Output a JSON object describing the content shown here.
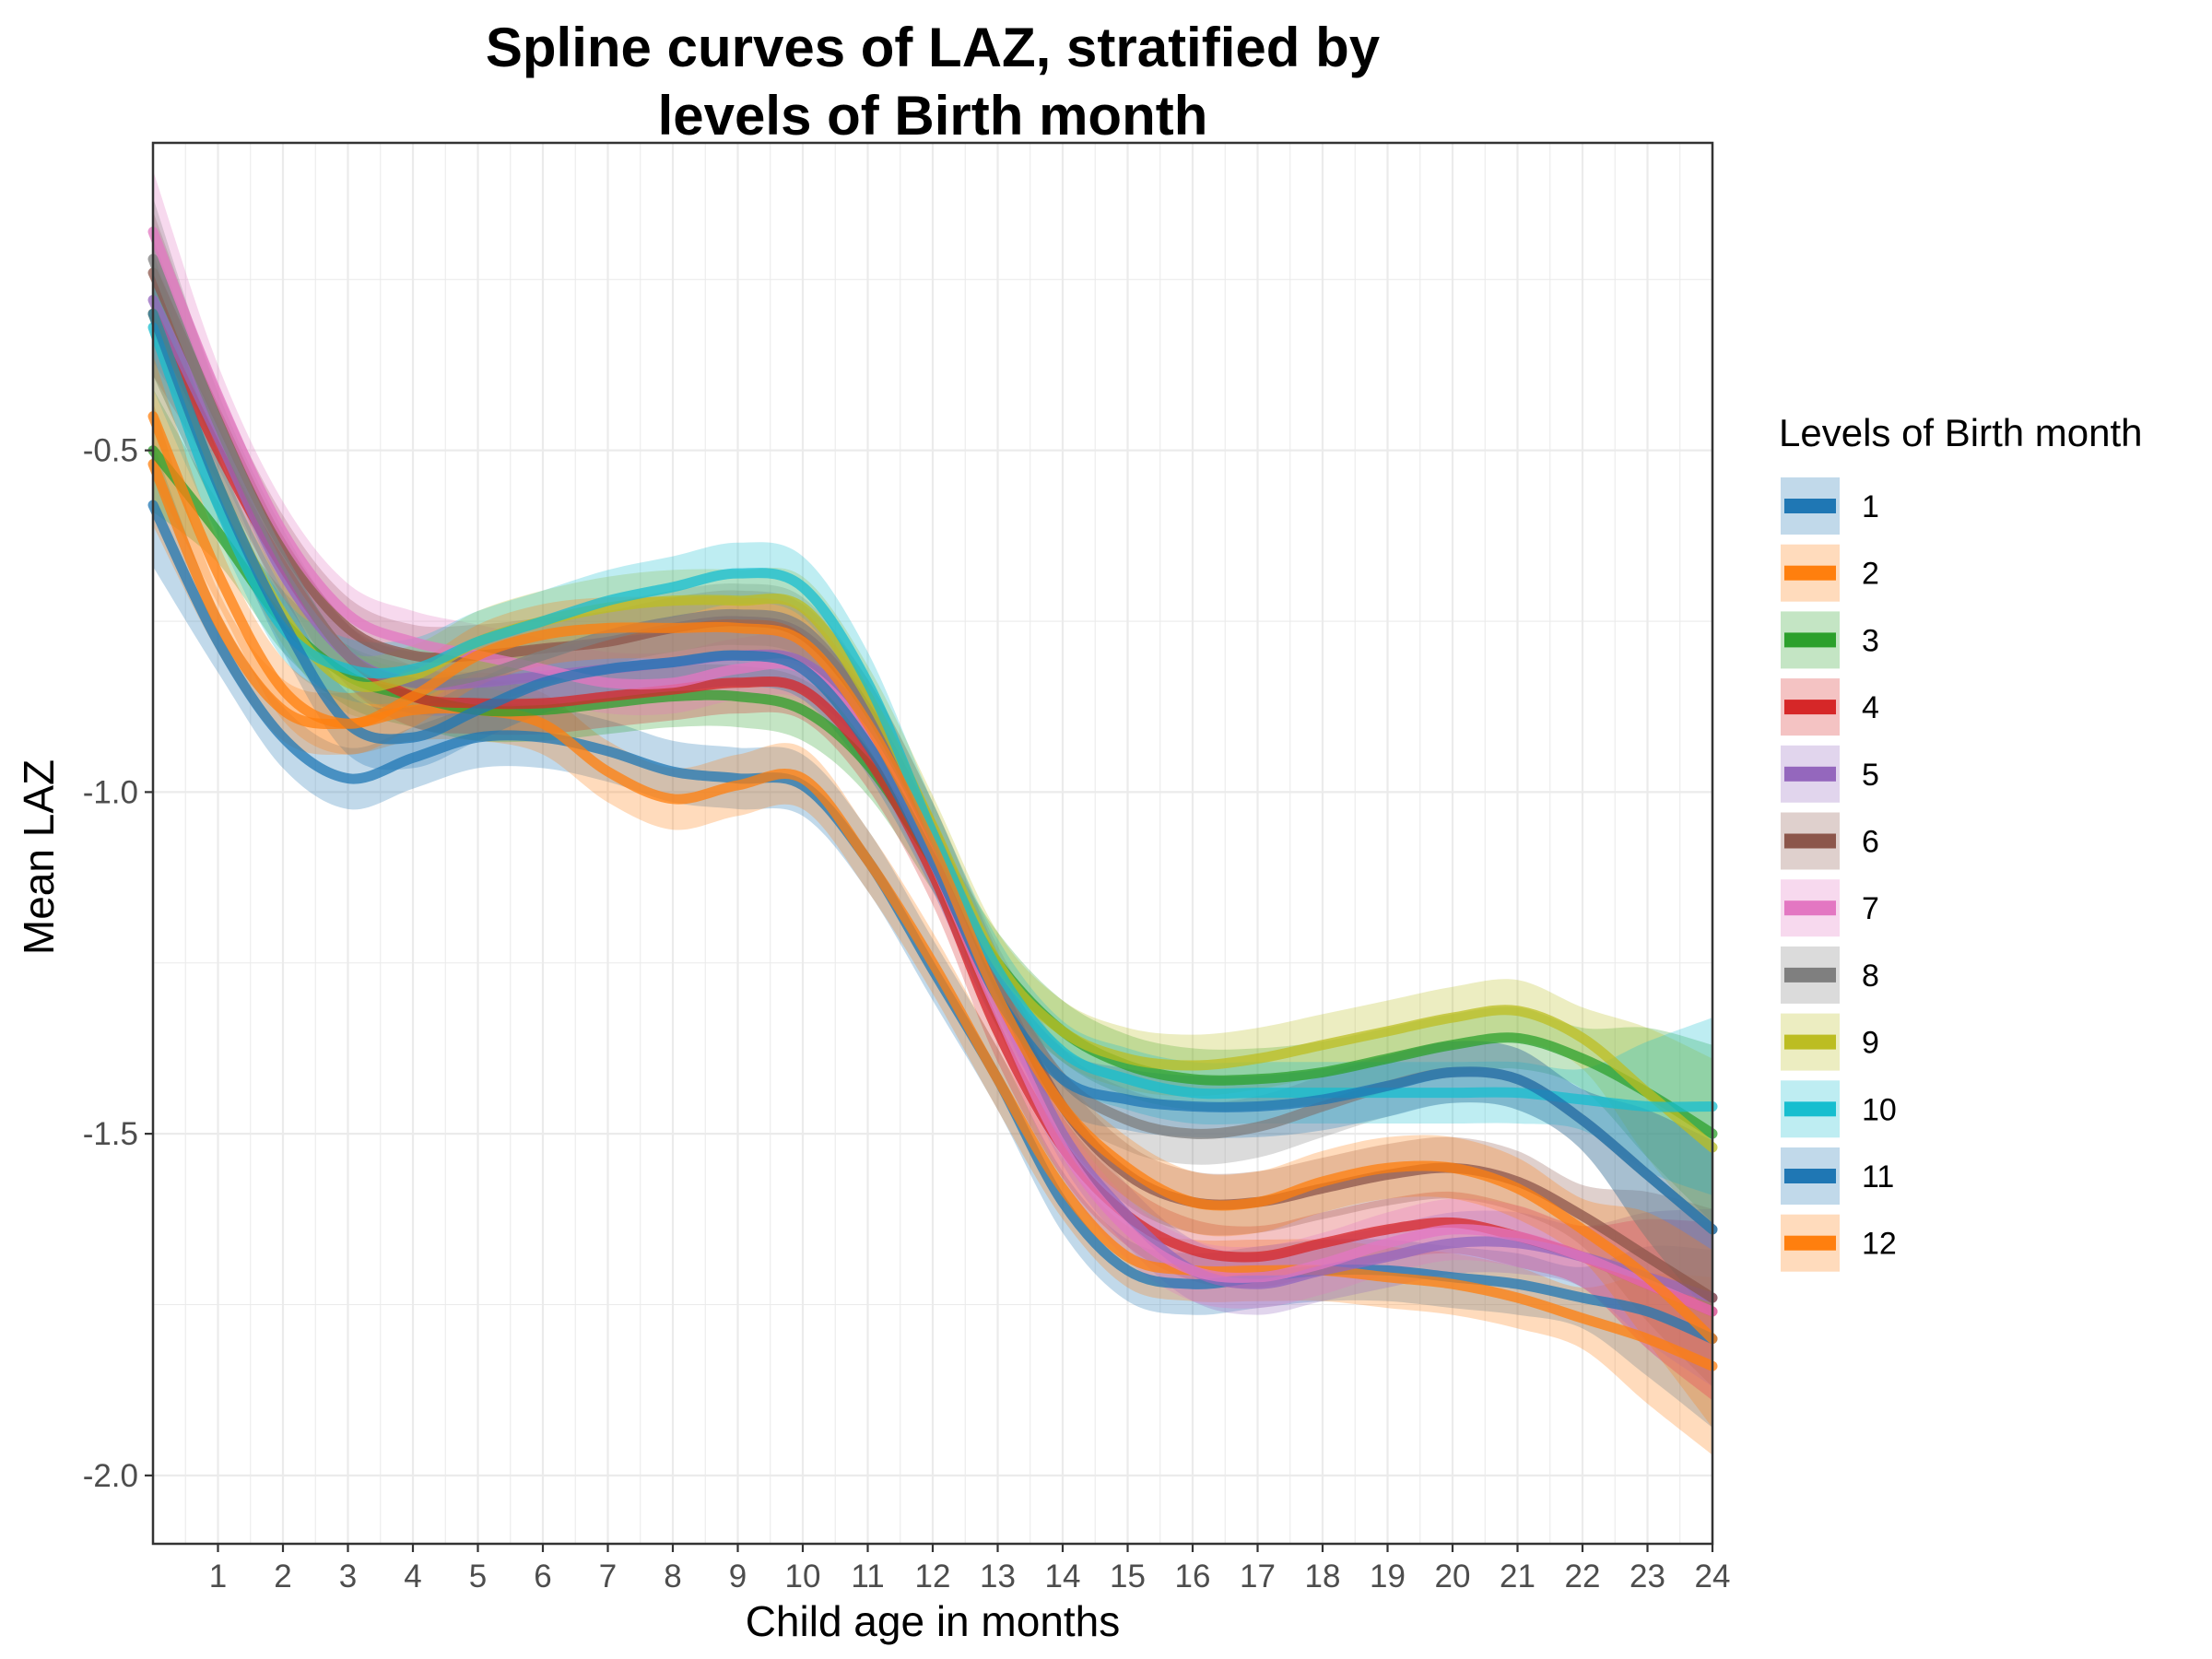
{
  "chart_data": {
    "type": "line",
    "title_lines": [
      "Spline curves of LAZ, stratified by",
      "levels of Birth month"
    ],
    "xlabel": "Child age in months",
    "ylabel": "Mean LAZ",
    "xlim": [
      0,
      24
    ],
    "ylim": [
      -2.1,
      -0.05
    ],
    "x_ticks": [
      1,
      2,
      3,
      4,
      5,
      6,
      7,
      8,
      9,
      10,
      11,
      12,
      13,
      14,
      15,
      16,
      17,
      18,
      19,
      20,
      21,
      22,
      23,
      24
    ],
    "x_tick_labels": [
      "1",
      "2",
      "3",
      "4",
      "5",
      "6",
      "7",
      "8",
      "9",
      "10",
      "11",
      "12",
      "13",
      "14",
      "15",
      "16",
      "17",
      "18",
      "19",
      "20",
      "21",
      "22",
      "23",
      "24"
    ],
    "y_ticks": [
      -0.5,
      -1.0,
      -1.5,
      -2.0
    ],
    "y_tick_labels": [
      "-0.5",
      "-1.0",
      "-1.5",
      "-2.0"
    ],
    "grid": true,
    "legend": {
      "title": "Levels of Birth month",
      "position": "right"
    },
    "x": [
      0,
      1,
      2,
      3,
      4,
      5,
      6,
      7,
      8,
      9,
      10,
      11,
      12,
      13,
      14,
      15,
      16,
      17,
      18,
      19,
      20,
      21,
      22,
      23,
      24
    ],
    "series": [
      {
        "name": "1",
        "color": "#1f77b4",
        "values": [
          -0.58,
          -0.78,
          -0.92,
          -0.98,
          -0.95,
          -0.92,
          -0.92,
          -0.94,
          -0.97,
          -0.98,
          -0.99,
          -1.1,
          -1.26,
          -1.42,
          -1.6,
          -1.7,
          -1.72,
          -1.71,
          -1.7,
          -1.7,
          -1.71,
          -1.72,
          -1.74,
          -1.76,
          -1.8
        ]
      },
      {
        "name": "2",
        "color": "#ff7f0e",
        "values": [
          -0.52,
          -0.75,
          -0.88,
          -0.9,
          -0.88,
          -0.88,
          -0.9,
          -0.97,
          -1.01,
          -0.99,
          -0.98,
          -1.1,
          -1.25,
          -1.42,
          -1.58,
          -1.68,
          -1.7,
          -1.7,
          -1.7,
          -1.71,
          -1.72,
          -1.74,
          -1.77,
          -1.8,
          -1.84
        ]
      },
      {
        "name": "3",
        "color": "#2ca02c",
        "values": [
          -0.5,
          -0.62,
          -0.75,
          -0.83,
          -0.86,
          -0.88,
          -0.88,
          -0.87,
          -0.86,
          -0.86,
          -0.88,
          -0.96,
          -1.1,
          -1.25,
          -1.35,
          -1.4,
          -1.42,
          -1.42,
          -1.41,
          -1.39,
          -1.37,
          -1.36,
          -1.39,
          -1.44,
          -1.5
        ]
      },
      {
        "name": "4",
        "color": "#d62728",
        "values": [
          -0.3,
          -0.5,
          -0.67,
          -0.8,
          -0.86,
          -0.87,
          -0.87,
          -0.86,
          -0.85,
          -0.84,
          -0.85,
          -0.95,
          -1.12,
          -1.35,
          -1.52,
          -1.62,
          -1.67,
          -1.68,
          -1.66,
          -1.64,
          -1.63,
          -1.65,
          -1.68,
          -1.72,
          -1.76
        ]
      },
      {
        "name": "5",
        "color": "#9467bd",
        "values": [
          -0.28,
          -0.48,
          -0.68,
          -0.8,
          -0.84,
          -0.84,
          -0.83,
          -0.82,
          -0.81,
          -0.8,
          -0.81,
          -0.9,
          -1.08,
          -1.3,
          -1.5,
          -1.62,
          -1.7,
          -1.72,
          -1.7,
          -1.68,
          -1.66,
          -1.66,
          -1.68,
          -1.71,
          -1.74
        ]
      },
      {
        "name": "6",
        "color": "#8c564b",
        "values": [
          -0.24,
          -0.45,
          -0.64,
          -0.76,
          -0.8,
          -0.8,
          -0.79,
          -0.78,
          -0.76,
          -0.75,
          -0.77,
          -0.88,
          -1.06,
          -1.28,
          -1.46,
          -1.56,
          -1.6,
          -1.6,
          -1.58,
          -1.56,
          -1.55,
          -1.57,
          -1.62,
          -1.68,
          -1.74
        ]
      },
      {
        "name": "7",
        "color": "#e377c2",
        "values": [
          -0.18,
          -0.42,
          -0.62,
          -0.74,
          -0.78,
          -0.8,
          -0.82,
          -0.84,
          -0.84,
          -0.82,
          -0.82,
          -0.92,
          -1.1,
          -1.32,
          -1.52,
          -1.64,
          -1.7,
          -1.71,
          -1.69,
          -1.66,
          -1.64,
          -1.65,
          -1.68,
          -1.72,
          -1.76
        ]
      },
      {
        "name": "8",
        "color": "#7f7f7f",
        "values": [
          -0.22,
          -0.46,
          -0.66,
          -0.8,
          -0.84,
          -0.83,
          -0.8,
          -0.77,
          -0.75,
          -0.74,
          -0.76,
          -0.88,
          -1.06,
          -1.27,
          -1.42,
          -1.48,
          -1.5,
          -1.49,
          -1.46,
          -1.43,
          -1.41,
          -1.42,
          -1.48,
          -1.56,
          -1.64
        ]
      },
      {
        "name": "9",
        "color": "#bcbd22",
        "values": [
          -0.3,
          -0.55,
          -0.74,
          -0.84,
          -0.83,
          -0.78,
          -0.75,
          -0.73,
          -0.72,
          -0.72,
          -0.73,
          -0.86,
          -1.05,
          -1.25,
          -1.35,
          -1.39,
          -1.4,
          -1.39,
          -1.37,
          -1.35,
          -1.33,
          -1.32,
          -1.36,
          -1.44,
          -1.52
        ]
      },
      {
        "name": "10",
        "color": "#17becf",
        "values": [
          -0.32,
          -0.58,
          -0.76,
          -0.82,
          -0.82,
          -0.78,
          -0.75,
          -0.72,
          -0.7,
          -0.68,
          -0.7,
          -0.84,
          -1.06,
          -1.26,
          -1.38,
          -1.42,
          -1.44,
          -1.44,
          -1.44,
          -1.44,
          -1.44,
          -1.44,
          -1.45,
          -1.46,
          -1.46
        ]
      },
      {
        "name": "11",
        "color": "#1f77b4",
        "values": [
          -0.3,
          -0.55,
          -0.75,
          -0.9,
          -0.92,
          -0.88,
          -0.84,
          -0.82,
          -0.81,
          -0.8,
          -0.82,
          -0.93,
          -1.1,
          -1.3,
          -1.42,
          -1.45,
          -1.46,
          -1.46,
          -1.45,
          -1.43,
          -1.41,
          -1.42,
          -1.48,
          -1.56,
          -1.64
        ]
      },
      {
        "name": "12",
        "color": "#ff7f0e",
        "values": [
          -0.45,
          -0.68,
          -0.85,
          -0.9,
          -0.86,
          -0.8,
          -0.77,
          -0.76,
          -0.76,
          -0.76,
          -0.78,
          -0.9,
          -1.08,
          -1.3,
          -1.46,
          -1.55,
          -1.6,
          -1.6,
          -1.57,
          -1.55,
          -1.55,
          -1.58,
          -1.64,
          -1.71,
          -1.8
        ]
      }
    ]
  }
}
